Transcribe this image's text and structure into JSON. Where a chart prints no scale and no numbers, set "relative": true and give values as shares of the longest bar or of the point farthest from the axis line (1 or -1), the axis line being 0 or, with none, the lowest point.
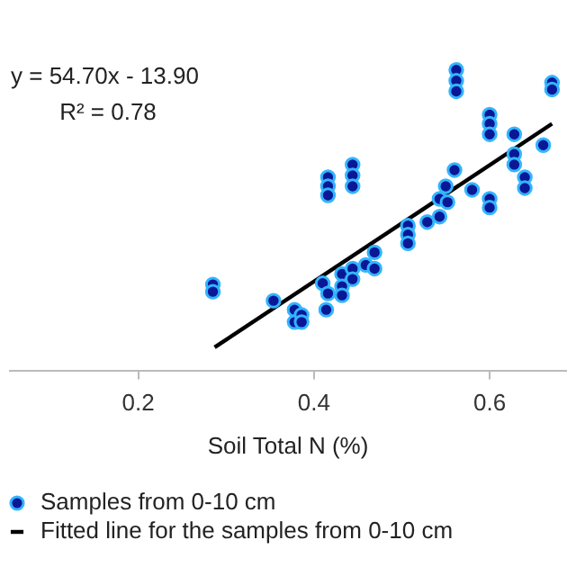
{
  "chart_data": {
    "type": "scatter",
    "xlabel": "Soil Total N (%)",
    "annotations": [
      "y = 54.70x - 13.90",
      "R² = 0.78"
    ],
    "relative": true,
    "xlim": [
      0.054,
      0.687
    ],
    "xticks": [
      0.2,
      0.4,
      0.6
    ],
    "grid": false,
    "legend": "bottom",
    "tick_labels": "x",
    "marker": "circle",
    "series": [
      {
        "name": "Samples from 0-10 cm",
        "color": "#0a1896",
        "x": [
          0.285,
          0.285,
          0.354,
          0.378,
          0.378,
          0.386,
          0.386,
          0.41,
          0.414,
          0.416,
          0.416,
          0.416,
          0.416,
          0.432,
          0.432,
          0.432,
          0.444,
          0.444,
          0.444,
          0.444,
          0.444,
          0.459,
          0.469,
          0.469,
          0.507,
          0.507,
          0.507,
          0.529,
          0.543,
          0.543,
          0.55,
          0.552,
          0.56,
          0.562,
          0.562,
          0.562,
          0.58,
          0.6,
          0.6,
          0.6,
          0.6,
          0.6,
          0.628,
          0.628,
          0.628,
          0.64,
          0.64,
          0.661,
          0.671,
          0.671
        ],
        "values": [
          0.286,
          0.262,
          0.232,
          0.202,
          0.161,
          0.185,
          0.161,
          0.29,
          0.202,
          0.256,
          0.643,
          0.613,
          0.583,
          0.321,
          0.28,
          0.25,
          0.685,
          0.649,
          0.613,
          0.339,
          0.304,
          0.351,
          0.393,
          0.339,
          0.482,
          0.452,
          0.423,
          0.494,
          0.512,
          0.571,
          0.613,
          0.56,
          0.667,
          1.0,
          0.964,
          0.929,
          0.601,
          0.851,
          0.821,
          0.786,
          0.571,
          0.542,
          0.786,
          0.72,
          0.685,
          0.643,
          0.607,
          0.75,
          0.958,
          0.935
        ]
      },
      {
        "name": "Fitted line for the samples from 0-10 cm",
        "type": "line",
        "marker": "none",
        "color": "#000000",
        "x": [
          0.287,
          0.671
        ],
        "values": [
          0.077,
          0.821
        ]
      }
    ]
  }
}
